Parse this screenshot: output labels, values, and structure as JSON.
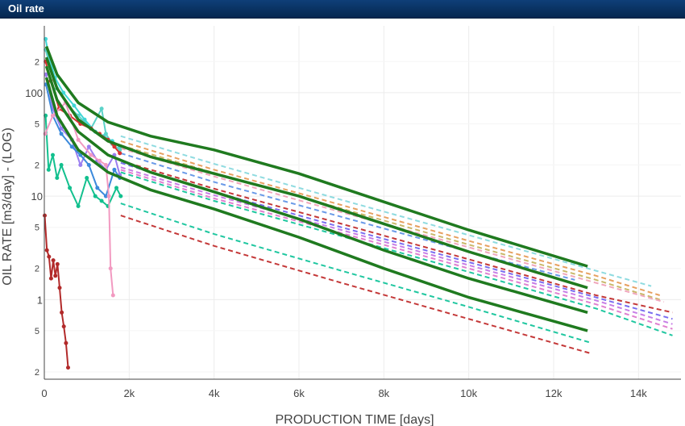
{
  "window": {
    "title": "Oil rate"
  },
  "chart_data": {
    "type": "line",
    "xlabel": "PRODUCTION TIME [days]",
    "ylabel": "OIL RATE [m3/day] - (LOG)",
    "x_scale": "linear",
    "y_scale": "log",
    "xlim": [
      0,
      15000
    ],
    "ylim": [
      0.17,
      370
    ],
    "grid": true,
    "x_ticks": [
      {
        "value": 0,
        "label": "0"
      },
      {
        "value": 2000,
        "label": "2k"
      },
      {
        "value": 4000,
        "label": "4k"
      },
      {
        "value": 6000,
        "label": "6k"
      },
      {
        "value": 8000,
        "label": "8k"
      },
      {
        "value": 10000,
        "label": "10k"
      },
      {
        "value": 12000,
        "label": "12k"
      },
      {
        "value": 14000,
        "label": "14k"
      }
    ],
    "y_major_ticks": [
      {
        "value": 1,
        "label": "1"
      },
      {
        "value": 10,
        "label": "10"
      },
      {
        "value": 100,
        "label": "100"
      }
    ],
    "y_minor_ticks": [
      {
        "value": 0.2,
        "label": "2"
      },
      {
        "value": 0.5,
        "label": "5"
      },
      {
        "value": 2,
        "label": "2"
      },
      {
        "value": 5,
        "label": "5"
      },
      {
        "value": 20,
        "label": "2"
      },
      {
        "value": 50,
        "label": "5"
      },
      {
        "value": 200,
        "label": "2"
      }
    ],
    "forecast_series": [
      {
        "color": "#8fdbe0",
        "x": [
          1800,
          4000,
          7000,
          10000,
          13000,
          14300
        ],
        "y": [
          38,
          20.5,
          9.2,
          4.2,
          1.9,
          1.35
        ]
      },
      {
        "color": "#e7a060",
        "x": [
          1800,
          4000,
          7000,
          10000,
          13000,
          14500
        ],
        "y": [
          34,
          18,
          8.2,
          3.7,
          1.7,
          1.1
        ]
      },
      {
        "color": "#c9b86a",
        "x": [
          1800,
          4000,
          7000,
          10000,
          13000,
          14500
        ],
        "y": [
          31,
          16.8,
          7.6,
          3.4,
          1.55,
          1.0
        ]
      },
      {
        "color": "#f0a7bd",
        "x": [
          1800,
          4000,
          7000,
          10000,
          13000,
          14600
        ],
        "y": [
          29,
          15.5,
          7.0,
          3.2,
          1.45,
          0.95
        ]
      },
      {
        "color": "#6a9ae8",
        "x": [
          1800,
          4000,
          7000,
          10000,
          12500
        ],
        "y": [
          26,
          13.7,
          6.3,
          2.9,
          1.55
        ]
      },
      {
        "color": "#c43838",
        "x": [
          1800,
          4000,
          7000,
          10000,
          13000,
          14800
        ],
        "y": [
          22,
          11.8,
          5.4,
          2.45,
          1.1,
          0.75
        ]
      },
      {
        "color": "#7a6ef0",
        "x": [
          1800,
          4000,
          7000,
          10000,
          13000,
          14800
        ],
        "y": [
          21,
          11.0,
          5.0,
          2.3,
          1.05,
          0.65
        ]
      },
      {
        "color": "#c77ee6",
        "x": [
          1800,
          4000,
          7000,
          10000,
          13000,
          14800
        ],
        "y": [
          19,
          10.2,
          4.7,
          2.15,
          0.98,
          0.58
        ]
      },
      {
        "color": "#e07fd0",
        "x": [
          1800,
          4000,
          7000,
          10000,
          13000,
          14800
        ],
        "y": [
          18,
          9.5,
          4.4,
          2.0,
          0.9,
          0.52
        ]
      },
      {
        "color": "#20c7a0",
        "x": [
          1800,
          4000,
          7000,
          10000,
          13000,
          14800
        ],
        "y": [
          17,
          9.0,
          4.1,
          1.85,
          0.82,
          0.45
        ]
      },
      {
        "color": "#20c7a0",
        "x": [
          1800,
          4000,
          7000,
          10000,
          12900
        ],
        "y": [
          8.5,
          4.3,
          1.9,
          0.85,
          0.38
        ]
      },
      {
        "color": "#c43838",
        "x": [
          1800,
          4000,
          7000,
          10000,
          12900
        ],
        "y": [
          6.5,
          3.3,
          1.45,
          0.65,
          0.3
        ]
      }
    ],
    "fitted_curves": [
      {
        "color": "#1f7a1f",
        "x": [
          50,
          300,
          800,
          1500,
          2500,
          4000,
          6000,
          8000,
          10000,
          12800
        ],
        "y": [
          280,
          150,
          80,
          52,
          38,
          28,
          16.5,
          8.8,
          4.7,
          2.1
        ]
      },
      {
        "color": "#1f7a1f",
        "x": [
          50,
          300,
          800,
          1500,
          2500,
          4000,
          6000,
          8000,
          10000,
          12800
        ],
        "y": [
          220,
          110,
          55,
          34,
          24,
          16.5,
          10.0,
          5.4,
          2.9,
          1.3
        ]
      },
      {
        "color": "#1f7a1f",
        "x": [
          50,
          300,
          800,
          1500,
          2500,
          4000,
          6000,
          8000,
          10000,
          12800
        ],
        "y": [
          180,
          85,
          42,
          25,
          17,
          11,
          6.0,
          3.0,
          1.6,
          0.75
        ]
      },
      {
        "color": "#1f7a1f",
        "x": [
          50,
          300,
          800,
          1500,
          2500,
          4000,
          6000,
          8000,
          10000,
          12800
        ],
        "y": [
          140,
          60,
          28,
          17,
          11.5,
          7.5,
          4.0,
          2.0,
          1.05,
          0.5
        ]
      }
    ],
    "history_series": [
      {
        "color": "#3fd6d6",
        "x": [
          30,
          100,
          250,
          450,
          700,
          950,
          1200,
          1400,
          1600,
          1780
        ],
        "y": [
          330,
          230,
          140,
          100,
          75,
          55,
          42,
          38,
          34,
          30
        ]
      },
      {
        "color": "#5bd2c8",
        "x": [
          30,
          120,
          300,
          550,
          800,
          1100,
          1350,
          1450,
          1600,
          1780
        ],
        "y": [
          260,
          190,
          110,
          75,
          60,
          45,
          70,
          40,
          32,
          28
        ]
      },
      {
        "color": "#d83030",
        "x": [
          30,
          150,
          350,
          600,
          850,
          1100,
          1300,
          1500,
          1650,
          1780
        ],
        "y": [
          200,
          130,
          70,
          60,
          50,
          45,
          40,
          35,
          30,
          26
        ]
      },
      {
        "color": "#9a7ef0",
        "x": [
          40,
          200,
          400,
          650,
          850,
          1050,
          1250,
          1450,
          1650,
          1780
        ],
        "y": [
          150,
          70,
          45,
          35,
          20,
          30,
          22,
          18,
          25,
          16
        ]
      },
      {
        "color": "#3c8adc",
        "x": [
          40,
          200,
          400,
          650,
          850,
          1050,
          1250,
          1450,
          1650,
          1780
        ],
        "y": [
          120,
          60,
          40,
          30,
          25,
          20,
          12,
          10,
          18,
          15
        ]
      },
      {
        "color": "#12c08e",
        "x": [
          30,
          100,
          200,
          300,
          400,
          600,
          800,
          1000,
          1200,
          1350,
          1500,
          1700,
          1800
        ],
        "y": [
          60,
          18,
          25,
          15,
          20,
          12,
          8,
          15,
          10,
          9,
          8,
          12,
          10
        ]
      },
      {
        "color": "#f29ac1",
        "x": [
          20,
          200,
          500,
          800,
          1100,
          1300,
          1450,
          1520,
          1560,
          1620
        ],
        "y": [
          40,
          60,
          80,
          35,
          25,
          22,
          20,
          10,
          2,
          1.1
        ]
      },
      {
        "color": "#b22a2a",
        "x": [
          10,
          60,
          110,
          160,
          210,
          260,
          310,
          360,
          410,
          460,
          510,
          560
        ],
        "y": [
          6.5,
          3.0,
          2.6,
          1.6,
          2.4,
          1.7,
          2.2,
          1.3,
          0.75,
          0.55,
          0.38,
          0.22
        ]
      }
    ]
  }
}
